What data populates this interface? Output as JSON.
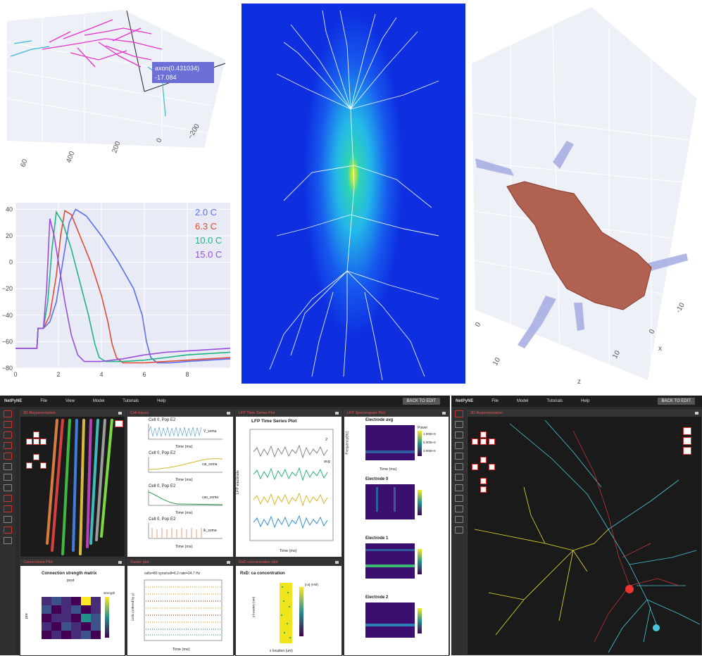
{
  "morph3d_tl": {
    "tooltip_line1": "axon(0.431034)",
    "tooltip_line2": "-17.084",
    "tick_labels": [
      "60",
      "400",
      "200",
      "0",
      "−200"
    ]
  },
  "chart_data": [
    {
      "type": "line",
      "title": "",
      "xlabel": "",
      "ylabel": "",
      "xlim": [
        0,
        10
      ],
      "ylim": [
        -80,
        45
      ],
      "x_ticks": [
        "0",
        "2",
        "4",
        "6",
        "8"
      ],
      "y_ticks": [
        "40",
        "20",
        "0",
        "−20",
        "−40",
        "−60",
        "−80"
      ],
      "legend_placement": "top-right",
      "series": [
        {
          "name": "2.0 C",
          "color": "#5b6ef0",
          "x": [
            0,
            1,
            1.05,
            1.3,
            1.6,
            1.9,
            2.2,
            2.5,
            2.8,
            3.3,
            4.0,
            4.8,
            5.5,
            5.9,
            6.1,
            6.3,
            6.6,
            7.2,
            8,
            9,
            10
          ],
          "y": [
            -65,
            -65,
            -50,
            -50,
            -45,
            -30,
            0,
            30,
            40,
            35,
            20,
            0,
            -20,
            -40,
            -60,
            -72,
            -76,
            -76,
            -75,
            -74,
            -73
          ]
        },
        {
          "name": "6.3 C",
          "color": "#e24a33",
          "x": [
            0,
            1,
            1.05,
            1.3,
            1.6,
            1.9,
            2.1,
            2.3,
            2.6,
            3.0,
            3.5,
            4.0,
            4.3,
            4.5,
            4.7,
            5.0,
            6,
            7,
            8,
            9,
            10
          ],
          "y": [
            -65,
            -65,
            -50,
            -50,
            -40,
            -10,
            20,
            39,
            36,
            20,
            0,
            -25,
            -45,
            -62,
            -72,
            -76,
            -76,
            -75,
            -74,
            -73,
            -72
          ]
        },
        {
          "name": "10.0 C",
          "color": "#1db67f",
          "x": [
            0,
            1,
            1.05,
            1.3,
            1.5,
            1.7,
            1.9,
            2.2,
            2.6,
            3.0,
            3.4,
            3.7,
            3.9,
            4.2,
            5,
            6,
            7,
            8,
            9,
            10
          ],
          "y": [
            -65,
            -65,
            -50,
            -50,
            -30,
            10,
            38,
            30,
            10,
            -15,
            -40,
            -62,
            -72,
            -75,
            -75,
            -74,
            -72,
            -70,
            -69,
            -68
          ]
        },
        {
          "name": "15.0 C",
          "color": "#9b4ce0",
          "x": [
            0,
            1,
            1.05,
            1.3,
            1.45,
            1.6,
            1.8,
            2.0,
            2.3,
            2.6,
            2.9,
            3.2,
            4,
            5,
            6,
            7,
            8,
            9,
            10
          ],
          "y": [
            -65,
            -65,
            -50,
            -50,
            -20,
            33,
            20,
            0,
            -30,
            -55,
            -70,
            -75,
            -75,
            -73,
            -70,
            -68,
            -67,
            -66,
            -65
          ]
        }
      ]
    }
  ],
  "volume3d_tr": {
    "tick_labels": [
      "-10",
      "0",
      "0",
      "10",
      "10",
      "x",
      "z"
    ]
  },
  "netpyne_main": {
    "logo": "NetPyNE",
    "menu": [
      "File",
      "View",
      "Model",
      "Tutorials",
      "Help"
    ],
    "back_label": "BACK TO EDIT",
    "panels": {
      "rep3d": "3D Representation",
      "traces": "Cell traces",
      "lfp_ts": "LFP Time Series Plot",
      "lfp_spec": "LFP Spectrogram Plot",
      "conn": "Connections Plot",
      "raster": "Raster plot",
      "rxd": "RxD concentration plot"
    },
    "traces": {
      "titles": [
        "Cell 0, Pop E2",
        "Cell 0, Pop E2",
        "Cell 0, Pop E2",
        "Cell 0, Pop E2"
      ],
      "legends": [
        "V_soma",
        "cai_soma",
        "cao_soma",
        "ik_soma"
      ],
      "xlabel": "Time (ms)",
      "xticks": [
        "0",
        "200",
        "400",
        "600",
        "800",
        "1000"
      ]
    },
    "lfp_ts": {
      "title": "LFP Time Series Plot",
      "ylabel": "LFP electrode",
      "xlabel": "Time (ms)",
      "xticks": [
        "0",
        "200",
        "400",
        "600",
        "800",
        "1000"
      ],
      "labels": [
        "2",
        "avg"
      ]
    },
    "spec": {
      "titles": [
        "Electrode avg",
        "Electrode 0",
        "Electrode 1",
        "Electrode 2"
      ],
      "ylabel": "Frequency(Hz)",
      "xlabel": "Time (ms)",
      "cbar_title": "Power",
      "cbar_ticks": [
        "1.500e-5",
        "5.000e-6",
        "3.000e-6"
      ]
    },
    "conn": {
      "title": "Connection strength matrix",
      "post": "post",
      "pre": "pre",
      "cbar_title": "strength",
      "cbar_ticks": [
        "0.1",
        "0.08",
        "0.06",
        "0.04",
        "0.02"
      ]
    },
    "raster": {
      "header": "cells=80  syns/cell=6.2  rate=24.7 Hz",
      "ylabel": "Cells (ordered by y)",
      "xlabel": "Time (ms)",
      "xticks": [
        "0",
        "200",
        "400",
        "600",
        "800",
        "1000"
      ]
    },
    "rxd": {
      "title": "RxD: ca concentration",
      "xlabel": "x location (um)",
      "ylabel": "y location (um)",
      "cbar_title": "[ca] (mM)"
    }
  },
  "netpyne_right": {
    "logo": "NetPyNE",
    "menu": [
      "File",
      "Model",
      "Tutorials",
      "Help"
    ],
    "back_label": "BACK TO EDIT",
    "panel_tab": "3D Representation"
  }
}
